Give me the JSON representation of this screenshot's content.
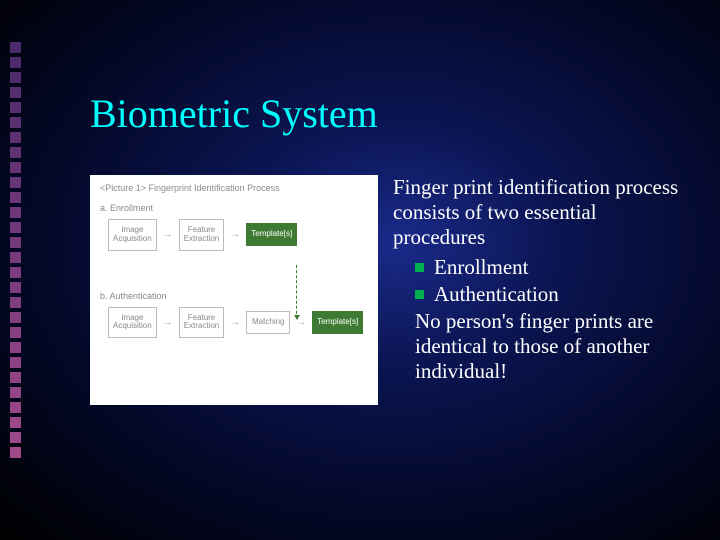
{
  "title": {
    "text": "Biometric System",
    "color": "#00ffff"
  },
  "sideSquares": {
    "count": 28,
    "colorTop": "#4a2a6a",
    "colorBottom": "#a04a8a"
  },
  "diagram": {
    "heading": "<Picture 1> Fingerprint Identification Process",
    "sectionA": {
      "label": "a. Enrollment",
      "boxes": [
        "Image\nAcquisition",
        "Feature\nExtraction",
        "Template[s]"
      ]
    },
    "sectionB": {
      "label": "b. Authentication",
      "boxes": [
        "Image\nAcquisition",
        "Feature\nExtraction",
        "Matching",
        "Template[s]"
      ]
    },
    "greenColor": "#3f7a32"
  },
  "text": {
    "intro": "Finger print identification process consists of two essential procedures",
    "bullet1": "Enrollment",
    "bullet2": "Authentication",
    "tail": "No person's finger prints are identical to those of another individual!",
    "bulletColor": "#00b050",
    "textColor": "#ffffff"
  }
}
